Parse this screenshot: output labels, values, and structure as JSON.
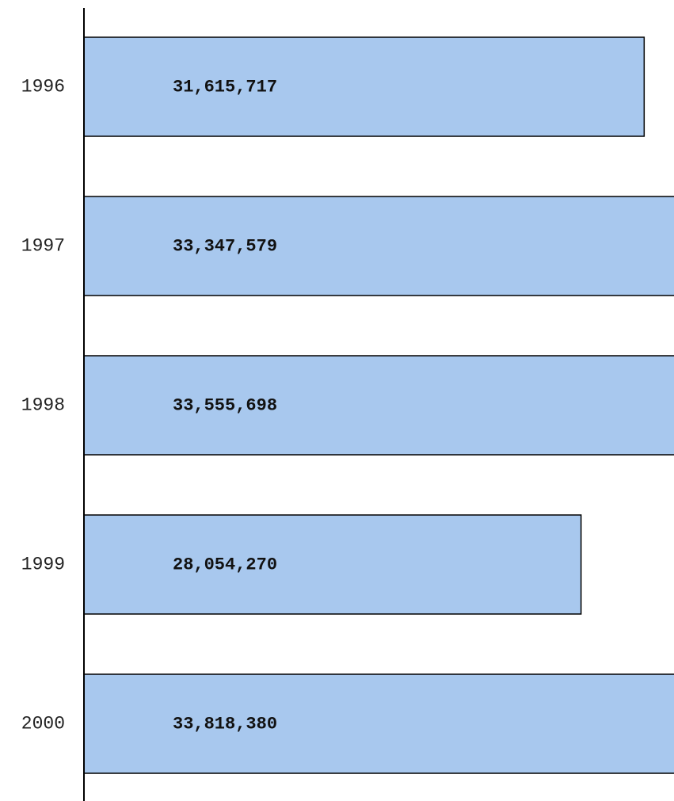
{
  "chart_data": {
    "type": "bar",
    "orientation": "horizontal",
    "categories": [
      "1996",
      "1997",
      "1998",
      "1999",
      "2000"
    ],
    "values": [
      31615717,
      33347579,
      33555698,
      28054270,
      33818380
    ],
    "value_labels": [
      "31,615,717",
      "33,347,579",
      "33,555,698",
      "28,054,270",
      "33,818,380"
    ],
    "color": "#a8c8ee",
    "xlim": [
      0,
      33300000
    ]
  }
}
